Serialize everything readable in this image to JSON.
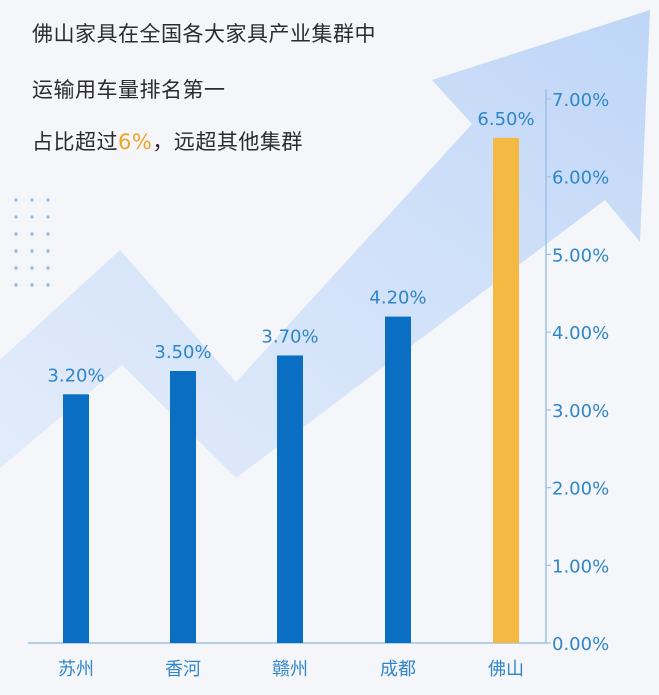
{
  "headline": {
    "line1": "佛山家具在全国各大家具产业集群中",
    "line2": "运输用车量排名第一",
    "line3_prefix": "占比超过",
    "line3_highlight": "6%",
    "line3_suffix": "，远超其他集群"
  },
  "colors": {
    "bar": "#0a6fc2",
    "bar_highlight": "#f4b942",
    "value_label": "#2f86c9",
    "tick_label": "#2f86c9",
    "axis": "#9ec2e6",
    "arrow": "#cfe0fa",
    "highlight_text": "#f0a32a"
  },
  "chart_data": {
    "type": "bar",
    "categories": [
      "苏州",
      "香河",
      "赣州",
      "成都",
      "佛山"
    ],
    "values": [
      3.2,
      3.5,
      3.7,
      4.2,
      6.5
    ],
    "value_labels": [
      "3.20%",
      "3.50%",
      "3.70%",
      "4.20%",
      "6.50%"
    ],
    "highlight_index": 4,
    "title": "",
    "xlabel": "",
    "ylabel": "",
    "ylim": [
      0,
      7
    ],
    "yticks": [
      0,
      1,
      2,
      3,
      4,
      5,
      6,
      7
    ],
    "ytick_labels": [
      "0.00%",
      "1.00%",
      "2.00%",
      "3.00%",
      "4.00%",
      "5.00%",
      "6.00%",
      "7.00%"
    ],
    "y_axis_side": "right",
    "grid": false,
    "legend": "none"
  }
}
